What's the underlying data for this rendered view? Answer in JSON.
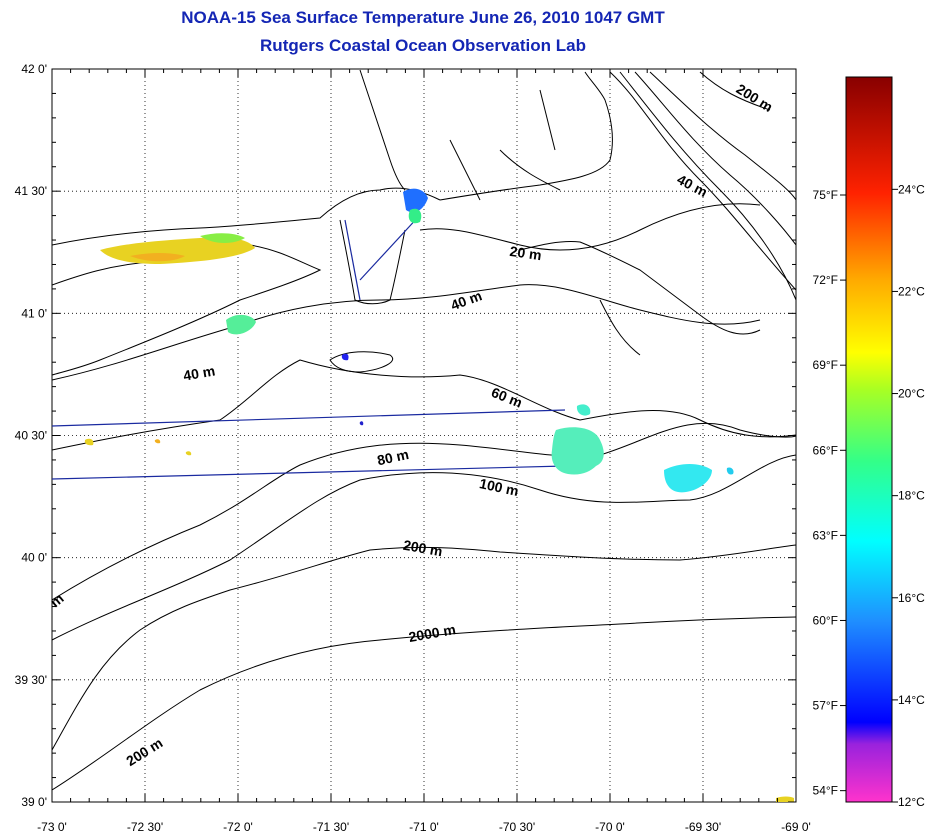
{
  "title": {
    "line1": "NOAA-15 Sea Surface Temperature June 26, 2010 1047 GMT",
    "line2": "Rutgers Coastal Ocean Observation Lab"
  },
  "colors": {
    "title": "#1426b4",
    "track_line": "#1a2aa0",
    "grid": "#000000"
  },
  "map": {
    "lon_range": [
      -73.0,
      -69.0
    ],
    "lat_range": [
      39.0,
      42.0
    ],
    "grid": "dotted",
    "lat_labels": [
      "42 0'",
      "41 30'",
      "41 0'",
      "40 30'",
      "40 0'",
      "39 30'",
      "39 0'"
    ],
    "lon_labels": [
      "-73 0'",
      "-72 30'",
      "-72 0'",
      "-71 30'",
      "-71 0'",
      "-70 30'",
      "-70 0'",
      "-69 30'",
      "-69 0'"
    ],
    "contour_labels": [
      "200 m",
      "40 m",
      "20 m",
      "40 m",
      "40 m",
      "60 m",
      "80 m",
      "100 m",
      "200 m",
      "2000 m",
      "200 m",
      "m"
    ]
  },
  "colorbar": {
    "celsius_labels": [
      "24°C",
      "22°C",
      "20°C",
      "18°C",
      "16°C",
      "14°C",
      "12°C"
    ],
    "fahrenheit_labels": [
      "75°F",
      "72°F",
      "69°F",
      "66°F",
      "63°F",
      "60°F",
      "57°F",
      "54°F"
    ]
  }
}
